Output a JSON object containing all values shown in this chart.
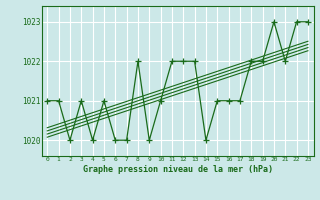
{
  "title": "Graphe pression niveau de la mer (hPa)",
  "x_values": [
    0,
    1,
    2,
    3,
    4,
    5,
    6,
    7,
    8,
    9,
    10,
    11,
    12,
    13,
    14,
    15,
    16,
    17,
    18,
    19,
    20,
    21,
    22,
    23
  ],
  "y_main": [
    1021,
    1021,
    1020,
    1021,
    1020,
    1021,
    1020,
    1020,
    1022,
    1020,
    1021,
    1022,
    1022,
    1022,
    1020,
    1021,
    1021,
    1021,
    1022,
    1022,
    1023,
    1022,
    1023,
    1023
  ],
  "ylim": [
    1019.6,
    1023.4
  ],
  "xlim": [
    -0.5,
    23.5
  ],
  "yticks": [
    1020,
    1021,
    1022,
    1023
  ],
  "xticks": [
    0,
    1,
    2,
    3,
    4,
    5,
    6,
    7,
    8,
    9,
    10,
    11,
    12,
    13,
    14,
    15,
    16,
    17,
    18,
    19,
    20,
    21,
    22,
    23
  ],
  "line_color": "#1a6b1a",
  "bg_color": "#cce8e8",
  "grid_color": "#ffffff",
  "text_color": "#1a6b1a",
  "marker": "+",
  "reg_offsets": [
    -0.12,
    -0.04,
    0.04,
    0.12
  ]
}
